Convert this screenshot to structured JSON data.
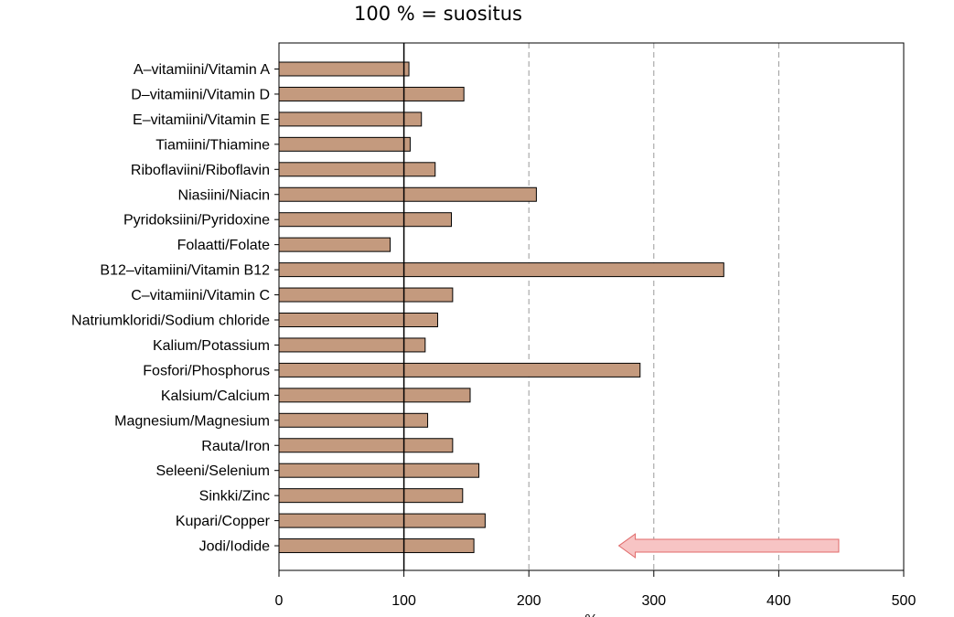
{
  "chart_data": {
    "type": "bar",
    "orientation": "horizontal",
    "title": "100 % = suositus",
    "xlabel": "%",
    "ylabel": "",
    "xlim": [
      0,
      500
    ],
    "xticks": [
      0,
      100,
      200,
      300,
      400,
      500
    ],
    "reference_line": 100,
    "dashed_gridlines": [
      200,
      300,
      400
    ],
    "bar_color": "#c49a7e",
    "categories": [
      "A–vitamiini/Vitamin A",
      "D–vitamiini/Vitamin D",
      "E–vitamiini/Vitamin E",
      "Tiamiini/Thiamine",
      "Riboflaviini/Riboflavin",
      "Niasiini/Niacin",
      "Pyridoksiini/Pyridoxine",
      "Folaatti/Folate",
      "B12–vitamiini/Vitamin B12",
      "C–vitamiini/Vitamin C",
      "Natriumkloridi/Sodium chloride",
      "Kalium/Potassium",
      "Fosfori/Phosphorus",
      "Kalsium/Calcium",
      "Magnesium/Magnesium",
      "Rauta/Iron",
      "Seleeni/Selenium",
      "Sinkki/Zinc",
      "Kupari/Copper",
      "Jodi/Iodide"
    ],
    "values": [
      104,
      148,
      114,
      105,
      125,
      206,
      138,
      89,
      356,
      139,
      127,
      117,
      289,
      153,
      119,
      139,
      160,
      147,
      165,
      156
    ],
    "annotation": {
      "type": "arrow",
      "direction": "left",
      "x_start": 448,
      "x_end": 272,
      "category": "Jodi/Iodide",
      "fill": "#f7c4c4",
      "stroke": "#e06a6a"
    }
  }
}
